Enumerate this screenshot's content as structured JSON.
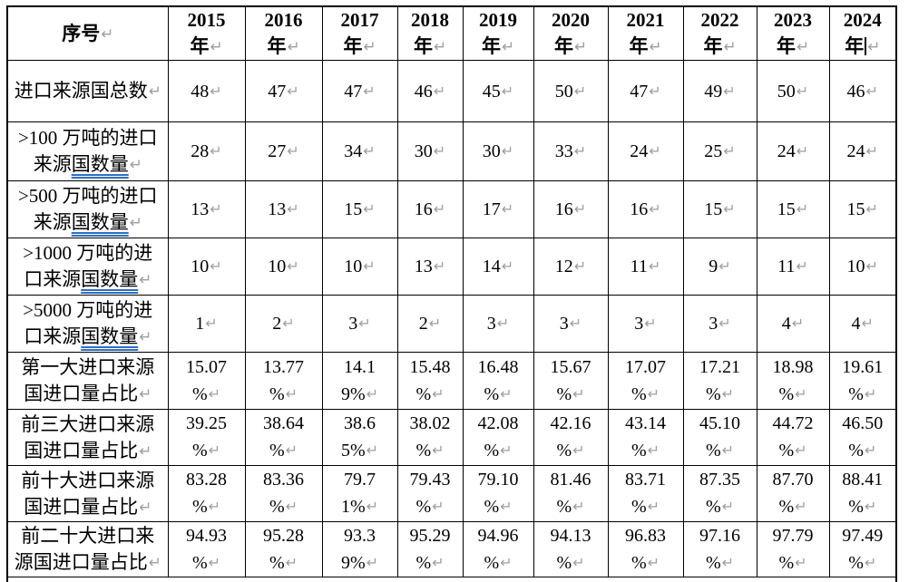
{
  "document": {
    "colors": {
      "text": "#000000",
      "border": "#000000",
      "paragraph_mark": "#9e9e9e",
      "grammar_underline": "#2e6fc0",
      "caret": "#000000"
    },
    "marks": {
      "return_mark": "↵"
    },
    "header": {
      "corner_label": "序号",
      "year_suffix": "年",
      "years": [
        "2015",
        "2016",
        "2017",
        "2018",
        "2019",
        "2020",
        "2021",
        "2022",
        "2023",
        "2024"
      ],
      "caret_column_index": 9
    },
    "rows": [
      {
        "label_lines": [
          [
            {
              "t": "进口来源国总数"
            }
          ]
        ],
        "values": [
          [
            "48"
          ],
          [
            "47"
          ],
          [
            "47"
          ],
          [
            "46"
          ],
          [
            "45"
          ],
          [
            "50"
          ],
          [
            "47"
          ],
          [
            "49"
          ],
          [
            "50"
          ],
          [
            "46"
          ]
        ]
      },
      {
        "label_lines": [
          [
            {
              "t": ">100 万吨的进口"
            }
          ],
          [
            {
              "t": "来源"
            },
            {
              "t": "国数量",
              "u": true
            }
          ]
        ],
        "values": [
          [
            "28"
          ],
          [
            "27"
          ],
          [
            "34"
          ],
          [
            "30"
          ],
          [
            "30"
          ],
          [
            "33"
          ],
          [
            "24"
          ],
          [
            "25"
          ],
          [
            "24"
          ],
          [
            "24"
          ]
        ]
      },
      {
        "label_lines": [
          [
            {
              "t": ">500 万吨的进口"
            }
          ],
          [
            {
              "t": "来源"
            },
            {
              "t": "国数量",
              "u": true
            }
          ]
        ],
        "values": [
          [
            "13"
          ],
          [
            "13"
          ],
          [
            "15"
          ],
          [
            "16"
          ],
          [
            "17"
          ],
          [
            "16"
          ],
          [
            "16"
          ],
          [
            "15"
          ],
          [
            "15"
          ],
          [
            "15"
          ]
        ]
      },
      {
        "label_lines": [
          [
            {
              "t": ">1000 万吨的进"
            }
          ],
          [
            {
              "t": "口来源"
            },
            {
              "t": "国数量",
              "u": true
            }
          ]
        ],
        "values": [
          [
            "10"
          ],
          [
            "10"
          ],
          [
            "10"
          ],
          [
            "13"
          ],
          [
            "14"
          ],
          [
            "12"
          ],
          [
            "11"
          ],
          [
            "9"
          ],
          [
            "11"
          ],
          [
            "10"
          ]
        ]
      },
      {
        "label_lines": [
          [
            {
              "t": ">5000 万吨的进"
            }
          ],
          [
            {
              "t": "口来源"
            },
            {
              "t": "国数量",
              "u": true
            }
          ]
        ],
        "values": [
          [
            "1"
          ],
          [
            "2"
          ],
          [
            "3"
          ],
          [
            "2"
          ],
          [
            "3"
          ],
          [
            "3"
          ],
          [
            "3"
          ],
          [
            "3"
          ],
          [
            "4"
          ],
          [
            "4"
          ]
        ]
      },
      {
        "label_lines": [
          [
            {
              "t": "第一大进口来源"
            }
          ],
          [
            {
              "t": "国进口量占比"
            }
          ]
        ],
        "values": [
          [
            "15.07",
            "%"
          ],
          [
            "13.77",
            "%"
          ],
          [
            "14.1",
            "9%"
          ],
          [
            "15.48",
            "%"
          ],
          [
            "16.48",
            "%"
          ],
          [
            "15.67",
            "%"
          ],
          [
            "17.07",
            "%"
          ],
          [
            "17.21",
            "%"
          ],
          [
            "18.98",
            "%"
          ],
          [
            "19.61",
            "%"
          ]
        ]
      },
      {
        "label_lines": [
          [
            {
              "t": "前三大进口来源"
            }
          ],
          [
            {
              "t": "国进口量占比"
            }
          ]
        ],
        "values": [
          [
            "39.25",
            "%"
          ],
          [
            "38.64",
            "%"
          ],
          [
            "38.6",
            "5%"
          ],
          [
            "38.02",
            "%"
          ],
          [
            "42.08",
            "%"
          ],
          [
            "42.16",
            "%"
          ],
          [
            "43.14",
            "%"
          ],
          [
            "45.10",
            "%"
          ],
          [
            "44.72",
            "%"
          ],
          [
            "46.50",
            "%"
          ]
        ]
      },
      {
        "label_lines": [
          [
            {
              "t": "前十大进口来源"
            }
          ],
          [
            {
              "t": "国进口量占比"
            }
          ]
        ],
        "values": [
          [
            "83.28",
            "%"
          ],
          [
            "83.36",
            "%"
          ],
          [
            "79.7",
            "1%"
          ],
          [
            "79.43",
            "%"
          ],
          [
            "79.10",
            "%"
          ],
          [
            "81.46",
            "%"
          ],
          [
            "83.71",
            "%"
          ],
          [
            "87.35",
            "%"
          ],
          [
            "87.70",
            "%"
          ],
          [
            "88.41",
            "%"
          ]
        ]
      },
      {
        "label_lines": [
          [
            {
              "t": "前二十大进口来"
            }
          ],
          [
            {
              "t": "源国进口量占比"
            }
          ]
        ],
        "values": [
          [
            "94.93",
            "%"
          ],
          [
            "95.28",
            "%"
          ],
          [
            "93.3",
            "9%"
          ],
          [
            "95.29",
            "%"
          ],
          [
            "94.96",
            "%"
          ],
          [
            "94.13",
            "%"
          ],
          [
            "96.83",
            "%"
          ],
          [
            "97.16",
            "%"
          ],
          [
            "97.79",
            "%"
          ],
          [
            "97.49",
            "%"
          ]
        ]
      }
    ]
  }
}
